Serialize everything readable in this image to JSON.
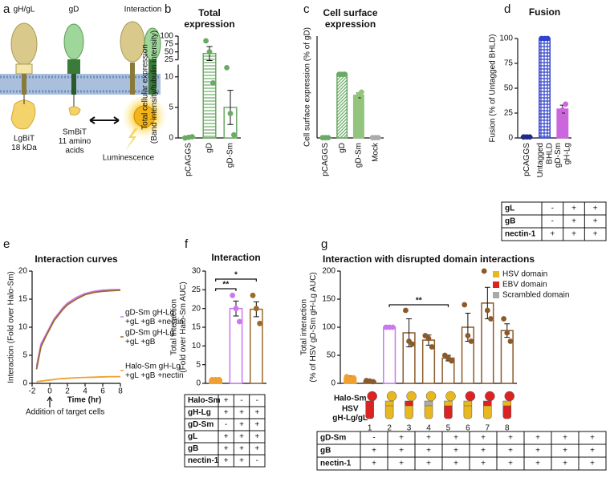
{
  "diagram": {
    "panel": "a",
    "labels": [
      "gH/gL",
      "gD",
      "Interaction",
      "LgBiT\n18 kDa",
      "SmBiT\n11 amino\nacids",
      "Luminescence"
    ]
  },
  "chart_data": [
    {
      "panel": "b",
      "type": "bar",
      "title": "Total\nexpression",
      "ylabel": "Total cellular expression\n(Band intensity/tubulin intensity)",
      "categories": [
        "pCAGGS",
        "gD",
        "gD-Sm"
      ],
      "values": [
        0.1,
        45,
        5
      ],
      "errors": [
        0.05,
        22,
        2.8
      ],
      "points": [
        [
          0,
          0.1,
          0.2
        ],
        [
          85,
          50,
          9
        ],
        [
          11.5,
          4,
          0.5
        ]
      ],
      "colors": [
        "#6aaa64",
        "#6aaa64",
        "#6aaa64"
      ],
      "patterns": [
        "solid",
        "hlines",
        "open"
      ],
      "ylim": [
        0,
        100
      ],
      "ybreak": [
        12,
        25
      ],
      "yticks": [
        0,
        5,
        10,
        25,
        50,
        75,
        100
      ]
    },
    {
      "panel": "c",
      "type": "bar",
      "title": "Cell surface\nexpression",
      "ylabel": "Cell surface expression (% of gD)",
      "categories": [
        "pCAGGS",
        "gD",
        "gD-Sm",
        "Mock"
      ],
      "values": [
        0.5,
        100,
        67,
        0.5
      ],
      "errors": [
        0.3,
        0.5,
        4,
        0.3
      ],
      "points": [
        [
          0.5,
          0.5,
          0.5
        ],
        [
          100,
          100,
          100
        ],
        [
          62,
          68,
          72
        ],
        [
          0.5,
          0.5,
          0.5
        ]
      ],
      "colors": [
        "#6aaa64",
        "#6aaa64",
        "#93c47d",
        "#aaaaaa"
      ],
      "patterns": [
        "solid",
        "dlines",
        "solid",
        "solid"
      ],
      "ylim": [
        0,
        160
      ]
    },
    {
      "panel": "d",
      "type": "bar",
      "title": "Fusion",
      "ylabel": "Fusion (% of Untagged BHLD)",
      "categories": [
        "pCAGGS",
        "Untagged\nBHLD",
        "gD-Sm\ngH-Lg"
      ],
      "values": [
        1,
        100,
        29
      ],
      "errors": [
        0.3,
        0.3,
        4
      ],
      "points": [
        [
          1,
          1,
          1
        ],
        [
          100,
          100,
          100
        ],
        [
          24,
          28,
          34
        ]
      ],
      "colors": [
        "#1f2a8c",
        "#3344cc",
        "#cc66dd"
      ],
      "patterns": [
        "solid",
        "grid",
        "solid"
      ],
      "ylim": [
        0,
        100
      ],
      "yticks": [
        0,
        25,
        50,
        75,
        100
      ],
      "table": {
        "rows": [
          {
            "label": "gL",
            "cells": [
              "-",
              "+",
              "+"
            ]
          },
          {
            "label": "gB",
            "cells": [
              "-",
              "+",
              "+"
            ]
          },
          {
            "label": "nectin-1",
            "cells": [
              "+",
              "+",
              "+"
            ]
          }
        ]
      }
    },
    {
      "panel": "e",
      "type": "line",
      "title": "Interaction curves",
      "ylabel": "Interaction (Fold over Halo-Sm)",
      "xlabel": "Time (hr)",
      "x": [
        -1.5,
        -1,
        -0.5,
        0,
        0.5,
        1,
        1.5,
        2,
        3,
        4,
        5,
        6,
        7,
        8
      ],
      "series": [
        {
          "name": "gD-Sm gH-Lg\n+gL +gB +nectin",
          "color": "#cc77ee",
          "values": [
            3,
            7,
            8.5,
            10,
            11.5,
            12.5,
            13.5,
            14.3,
            15.3,
            16,
            16.4,
            16.6,
            16.7,
            16.7
          ]
        },
        {
          "name": "gD-Sm gH-Lg\n+gL +gB",
          "color": "#9a6a2a",
          "values": [
            2.5,
            6.5,
            8.2,
            9.7,
            11.2,
            12.2,
            13.2,
            14,
            15,
            15.8,
            16.2,
            16.4,
            16.5,
            16.6
          ]
        },
        {
          "name": "Halo-Sm gH-Lg\n+gL +gB +nectin",
          "color": "#f0a030",
          "values": [
            0.3,
            0.4,
            0.5,
            0.6,
            0.7,
            0.8,
            0.85,
            0.9,
            1,
            1.05,
            1.1,
            1.15,
            1.2,
            1.2
          ]
        }
      ],
      "xlim": [
        -2,
        8
      ],
      "ylim": [
        0,
        20
      ],
      "xticks": [
        -2,
        0,
        2,
        4,
        6,
        8
      ],
      "yticks": [
        0,
        5,
        10,
        15,
        20
      ],
      "annotation": {
        "text": "Addition of target cells",
        "x": 0
      }
    },
    {
      "panel": "f",
      "type": "bar",
      "title": "Interaction",
      "ylabel": "Total interaction\n(Fold over Halo-Sm AUC)",
      "categories": [
        null,
        null,
        null
      ],
      "values": [
        1,
        20,
        19.8
      ],
      "errors": [
        0.1,
        2,
        2
      ],
      "points": [
        [
          1,
          1,
          1
        ],
        [
          23.5,
          20,
          16.5
        ],
        [
          23.5,
          20,
          16
        ]
      ],
      "colors": [
        "#f0a030",
        "#cc77ee",
        "#9a6a2a"
      ],
      "patterns": [
        "solid",
        "open",
        "open"
      ],
      "ylim": [
        0,
        30
      ],
      "yticks": [
        0,
        5,
        10,
        15,
        20,
        25,
        30
      ],
      "significance": [
        {
          "between": [
            0,
            1
          ],
          "label": "**"
        },
        {
          "between": [
            0,
            2
          ],
          "label": "*"
        }
      ],
      "table": {
        "rows": [
          {
            "label": "Halo-Sm",
            "cells": [
              "+",
              "-",
              "-"
            ]
          },
          {
            "label": "gH-Lg",
            "cells": [
              "+",
              "+",
              "+"
            ]
          },
          {
            "label": "gD-Sm",
            "cells": [
              "-",
              "+",
              "+"
            ]
          },
          {
            "label": "gL",
            "cells": [
              "+",
              "+",
              "+"
            ]
          },
          {
            "label": "gB",
            "cells": [
              "+",
              "+",
              "+"
            ]
          },
          {
            "label": "nectin-1",
            "cells": [
              "+",
              "+",
              "-"
            ]
          }
        ]
      }
    },
    {
      "panel": "g",
      "type": "bar",
      "title": "Interaction with disrupted domain interactions",
      "ylabel": "Total interaction\n(% of HSV gD-Sm gH-Lg AUC)",
      "categories": [
        "Halo-Sm",
        "1",
        "2",
        "3",
        "4",
        "5",
        "6",
        "7",
        "8"
      ],
      "row_label": "HSV\ngH-Lg/gL",
      "values": [
        10,
        4,
        100,
        90,
        77,
        45,
        100,
        143,
        94
      ],
      "errors": [
        3,
        1,
        0.5,
        25,
        9,
        5,
        25,
        28,
        12
      ],
      "points": [
        [
          12,
          8,
          10
        ],
        [
          5,
          4,
          3
        ],
        [
          100,
          100,
          100
        ],
        [
          130,
          75,
          70
        ],
        [
          85,
          80,
          65
        ],
        [
          50,
          45,
          40
        ],
        [
          140,
          85,
          75
        ],
        [
          200,
          130,
          115
        ],
        [
          115,
          90,
          75
        ]
      ],
      "colors": [
        "#f0a030",
        "#8b5a2b",
        "#cc77ee",
        "#8b5a2b",
        "#8b5a2b",
        "#8b5a2b",
        "#8b5a2b",
        "#8b5a2b",
        "#8b5a2b"
      ],
      "patterns": [
        "solid",
        "open",
        "open",
        "open",
        "open",
        "open",
        "open",
        "open",
        "open"
      ],
      "ylim": [
        0,
        200
      ],
      "yticks": [
        0,
        50,
        100,
        150,
        200
      ],
      "legend": [
        {
          "name": "HSV domain",
          "color": "#e8b820"
        },
        {
          "name": "EBV domain",
          "color": "#dd2222"
        },
        {
          "name": "Scrambled domain",
          "color": "#aaaaaa"
        }
      ],
      "significance": [
        {
          "between": [
            2,
            5
          ],
          "label": "**"
        }
      ],
      "table": {
        "rows": [
          {
            "label": "gD-Sm",
            "cells": [
              "-",
              "+",
              "+",
              "+",
              "+",
              "+",
              "+",
              "+",
              "+"
            ]
          },
          {
            "label": "gB",
            "cells": [
              "+",
              "+",
              "+",
              "+",
              "+",
              "+",
              "+",
              "+",
              "+"
            ]
          },
          {
            "label": "nectin-1",
            "cells": [
              "+",
              "+",
              "+",
              "+",
              "+",
              "+",
              "+",
              "+",
              "+"
            ]
          }
        ]
      }
    }
  ]
}
